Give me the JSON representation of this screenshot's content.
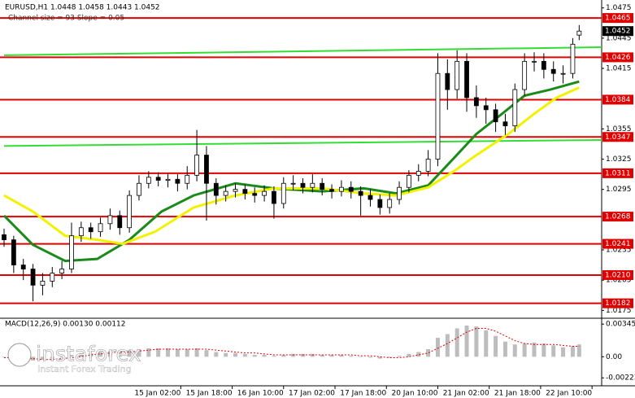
{
  "chart_data": {
    "type": "candlestick",
    "header": "EURUSD,H1  1.0448 1.0458 1.0443 1.0452",
    "channel_text": "Channel size = 93 Slope = 0.05",
    "xlim": [
      0,
      186
    ],
    "xticks": [
      {
        "value": 55,
        "label": "15 Jan 02:00"
      },
      {
        "value": 71,
        "label": "15 Jan 18:00"
      },
      {
        "value": 87,
        "label": "16 Jan 10:00"
      },
      {
        "value": 103,
        "label": "17 Jan 02:00"
      },
      {
        "value": 119,
        "label": "17 Jan 18:00"
      },
      {
        "value": 135,
        "label": "20 Jan 10:00"
      },
      {
        "value": 151,
        "label": "21 Jan 02:00"
      },
      {
        "value": 167,
        "label": "21 Jan 18:00"
      },
      {
        "value": 183,
        "label": "22 Jan 10:00"
      }
    ],
    "ylim": [
      1.0168,
      1.0478
    ],
    "yticks": [
      1.0475,
      1.0445,
      1.0415,
      1.0355,
      1.0325,
      1.0295,
      1.0235,
      1.0205,
      1.0175
    ],
    "candles": {
      "up_color": "#ffffff",
      "down_color": "#000000",
      "x": [
        0,
        3,
        6,
        9,
        12,
        15,
        18,
        21,
        24,
        27,
        30,
        33,
        36,
        39,
        42,
        45,
        48,
        51,
        54,
        57,
        60,
        63,
        66,
        69,
        72,
        75,
        78,
        81,
        84,
        87,
        90,
        93,
        96,
        99,
        102,
        105,
        108,
        111,
        114,
        117,
        120,
        123,
        126,
        129,
        132,
        135,
        138,
        141,
        144,
        147,
        150,
        153,
        156,
        159,
        162,
        165,
        168,
        171,
        174,
        177,
        179
      ],
      "open": [
        1.025,
        1.0245,
        1.022,
        1.0216,
        1.02,
        1.0204,
        1.0212,
        1.0216,
        1.0249,
        1.0257,
        1.0253,
        1.0261,
        1.0269,
        1.0257,
        1.0289,
        1.0301,
        1.0307,
        1.0304,
        1.0305,
        1.0301,
        1.0309,
        1.0329,
        1.0301,
        1.0289,
        1.0293,
        1.0295,
        1.0291,
        1.0289,
        1.0293,
        1.0281,
        1.0301,
        1.0301,
        1.0297,
        1.0301,
        1.0295,
        1.0293,
        1.0297,
        1.0293,
        1.0289,
        1.0285,
        1.0277,
        1.0285,
        1.0297,
        1.0309,
        1.0313,
        1.0325,
        1.041,
        1.0394,
        1.0422,
        1.0386,
        1.0378,
        1.0374,
        1.0362,
        1.0358,
        1.0394,
        1.0422,
        1.0422,
        1.0414,
        1.041,
        1.041,
        1.0448
      ],
      "high": [
        1.0256,
        1.0249,
        1.0226,
        1.0221,
        1.0212,
        1.0218,
        1.0224,
        1.0262,
        1.0263,
        1.0262,
        1.0267,
        1.0276,
        1.0274,
        1.0294,
        1.0309,
        1.0313,
        1.0312,
        1.0311,
        1.031,
        1.0318,
        1.0354,
        1.0338,
        1.0306,
        1.0299,
        1.0301,
        1.03,
        1.0297,
        1.0299,
        1.0298,
        1.0307,
        1.0309,
        1.0306,
        1.031,
        1.0306,
        1.03,
        1.0304,
        1.0303,
        1.0298,
        1.0295,
        1.029,
        1.0291,
        1.0303,
        1.0314,
        1.032,
        1.0334,
        1.043,
        1.0424,
        1.0433,
        1.043,
        1.0398,
        1.0386,
        1.038,
        1.037,
        1.04,
        1.043,
        1.0431,
        1.043,
        1.0422,
        1.0418,
        1.0445,
        1.0458
      ],
      "low": [
        1.0238,
        1.0212,
        1.0205,
        1.0184,
        1.019,
        1.0198,
        1.0206,
        1.0212,
        1.0243,
        1.0246,
        1.0248,
        1.0255,
        1.025,
        1.0252,
        1.0284,
        1.0296,
        1.0298,
        1.0297,
        1.0293,
        1.0295,
        1.0303,
        1.0264,
        1.028,
        1.0283,
        1.0287,
        1.0285,
        1.0282,
        1.0283,
        1.0266,
        1.0276,
        1.0294,
        1.0291,
        1.0292,
        1.0289,
        1.0286,
        1.0288,
        1.0286,
        1.0269,
        1.0278,
        1.027,
        1.0271,
        1.028,
        1.0292,
        1.0303,
        1.0308,
        1.0318,
        1.0374,
        1.0385,
        1.0372,
        1.0366,
        1.036,
        1.0352,
        1.0349,
        1.0352,
        1.0388,
        1.0412,
        1.0405,
        1.0402,
        1.04,
        1.0405,
        1.0443
      ],
      "close": [
        1.0245,
        1.022,
        1.0216,
        1.02,
        1.0204,
        1.0212,
        1.0216,
        1.0249,
        1.0257,
        1.0253,
        1.0261,
        1.0269,
        1.0257,
        1.0289,
        1.0301,
        1.0307,
        1.0304,
        1.0305,
        1.0301,
        1.0309,
        1.0329,
        1.0301,
        1.0289,
        1.0293,
        1.0295,
        1.0291,
        1.0289,
        1.0293,
        1.0281,
        1.0301,
        1.0301,
        1.0297,
        1.0301,
        1.0295,
        1.0293,
        1.0297,
        1.0293,
        1.0289,
        1.0285,
        1.0277,
        1.0285,
        1.0297,
        1.0309,
        1.0313,
        1.0325,
        1.041,
        1.0394,
        1.0422,
        1.0386,
        1.0378,
        1.0374,
        1.0362,
        1.0358,
        1.0394,
        1.0422,
        1.0422,
        1.0414,
        1.041,
        1.041,
        1.0439,
        1.0452
      ]
    },
    "moving_averages": [
      {
        "color": "#1a8a1a",
        "x": [
          0,
          9,
          19,
          29,
          39,
          49,
          59,
          72,
          84,
          99,
          112,
          122,
          132,
          140,
          147,
          155,
          162,
          170,
          179
        ],
        "values": [
          1.0269,
          1.024,
          1.0224,
          1.0226,
          1.0245,
          1.0273,
          1.0289,
          1.0301,
          1.0296,
          1.0293,
          1.0296,
          1.0291,
          1.0299,
          1.0326,
          1.035,
          1.037,
          1.0388,
          1.0394,
          1.0402
        ]
      },
      {
        "color": "#f2f200",
        "x": [
          0,
          9,
          19,
          29,
          37,
          47,
          59,
          72,
          84,
          99,
          112,
          122,
          132,
          140,
          147,
          157,
          165,
          172,
          179
        ],
        "values": [
          1.0289,
          1.0273,
          1.0249,
          1.0245,
          1.0241,
          1.0253,
          1.0277,
          1.0289,
          1.0296,
          1.0296,
          1.0291,
          1.0289,
          1.0297,
          1.0313,
          1.0329,
          1.035,
          1.037,
          1.0386,
          1.0396
        ]
      }
    ],
    "channel_lines": [
      {
        "color": "#33dd33",
        "x": [
          0,
          186
        ],
        "values": [
          1.0428,
          1.0436
        ]
      },
      {
        "color": "#33dd33",
        "x": [
          0,
          186
        ],
        "values": [
          1.0338,
          1.0344
        ]
      }
    ],
    "levels_color": "#e00000",
    "levels": [
      {
        "value": 1.0465,
        "label": "1.0465"
      },
      {
        "value": 1.0426,
        "label": "1.0426"
      },
      {
        "value": 1.0384,
        "label": "1.0384"
      },
      {
        "value": 1.0347,
        "label": "1.0347"
      },
      {
        "value": 1.0311,
        "label": "1.0311"
      },
      {
        "value": 1.0268,
        "label": "1.0268"
      },
      {
        "value": 1.0241,
        "label": "1.0241"
      },
      {
        "value": 1.021,
        "label": "1.0210"
      },
      {
        "value": 1.0182,
        "label": "1.0182"
      }
    ],
    "macd": {
      "label": "MACD(12,26,9) 0.00130 0.00112",
      "ylim": [
        -0.0029,
        0.0039
      ],
      "yticks": [
        0.00345,
        {
          "value": 0,
          "label": "0.00"
        },
        -0.00223
      ],
      "hist_color": "#bdbdbd",
      "signal_color": "#e00000",
      "histogram": [
        0.0,
        -0.0002,
        -0.0003,
        -0.0004,
        -0.0003,
        -0.0002,
        -0.0001,
        0.0002,
        0.0004,
        0.0004,
        0.0005,
        0.0006,
        0.0005,
        0.0007,
        0.0008,
        0.0009,
        0.0009,
        0.0009,
        0.0008,
        0.0008,
        0.0009,
        0.0007,
        0.0005,
        0.0004,
        0.0004,
        0.0003,
        0.0002,
        0.0002,
        0.0001,
        0.0002,
        0.0003,
        0.0003,
        0.0003,
        0.0002,
        0.0002,
        0.0002,
        0.0001,
        0.0,
        -0.0001,
        -0.0002,
        -0.0001,
        0.0001,
        0.0003,
        0.0005,
        0.0008,
        0.002,
        0.0024,
        0.003,
        0.0033,
        0.0032,
        0.0028,
        0.0022,
        0.0016,
        0.0013,
        0.0014,
        0.0015,
        0.0014,
        0.0012,
        0.001,
        0.0011,
        0.0013
      ],
      "signal": [
        -0.0001,
        -0.0001,
        -0.0002,
        -0.0002,
        -0.0003,
        -0.0003,
        -0.0002,
        -0.0001,
        0.0,
        0.0002,
        0.0003,
        0.0004,
        0.0005,
        0.0005,
        0.0006,
        0.0007,
        0.0008,
        0.0008,
        0.0008,
        0.0008,
        0.0008,
        0.0008,
        0.0007,
        0.0006,
        0.0005,
        0.0004,
        0.0004,
        0.0003,
        0.0002,
        0.0002,
        0.0002,
        0.0002,
        0.0002,
        0.0002,
        0.0002,
        0.0002,
        0.0002,
        0.0001,
        0.0001,
        0.0,
        -0.0001,
        -0.0001,
        0.0,
        0.0002,
        0.0004,
        0.0009,
        0.0014,
        0.002,
        0.0026,
        0.003,
        0.003,
        0.0027,
        0.0022,
        0.0017,
        0.0014,
        0.0013,
        0.0013,
        0.0013,
        0.0012,
        0.0011,
        0.0011
      ]
    },
    "logo": {
      "brand": "instaforex",
      "tagline": "Instant Forex Trading"
    }
  }
}
